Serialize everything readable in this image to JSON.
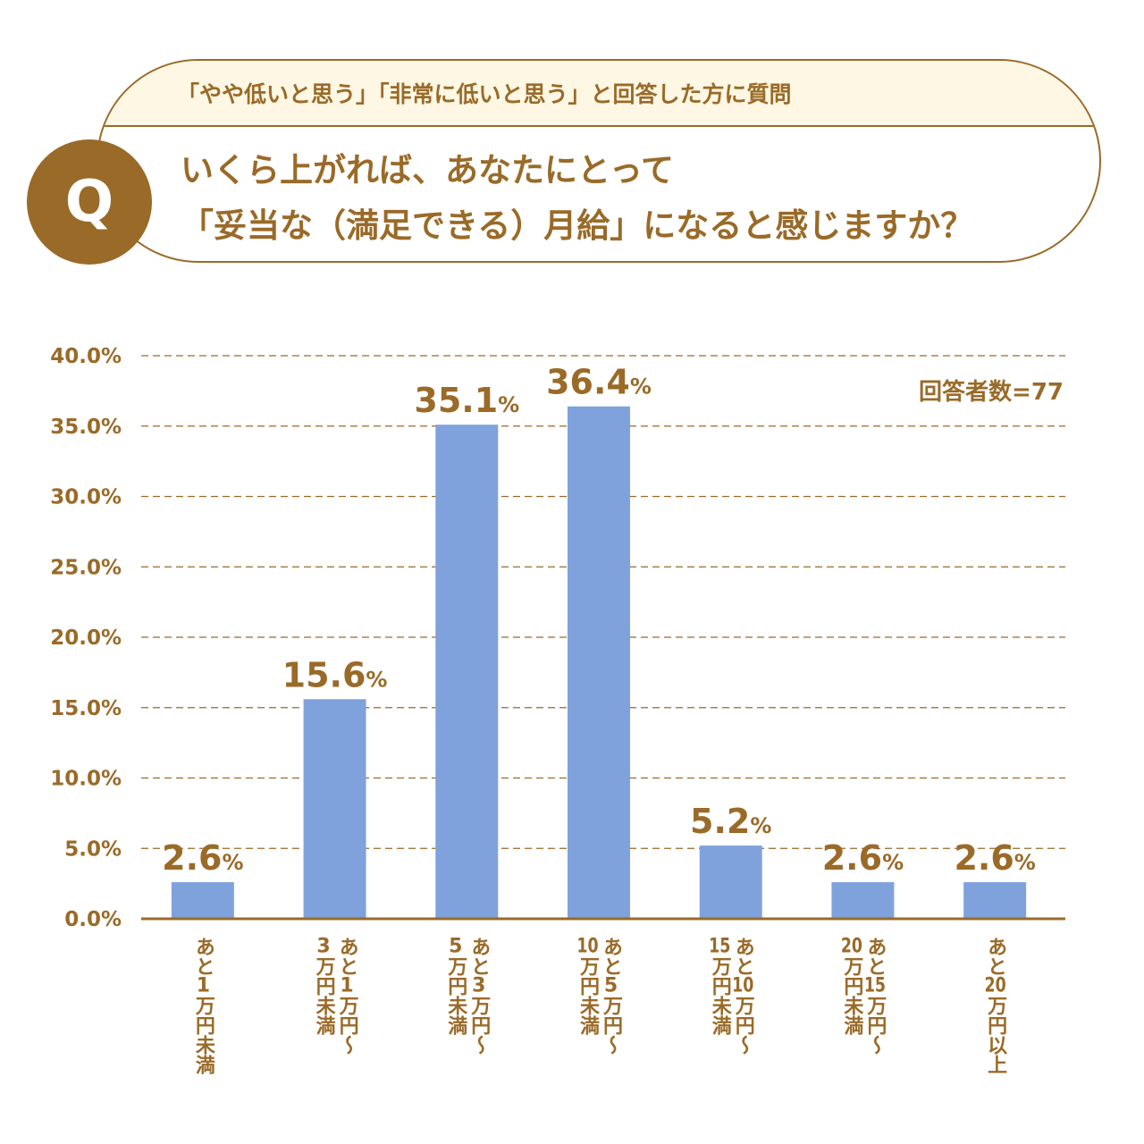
{
  "header": {
    "subtitle": "「やや低いと思う」「非常に低いと思う」と回答した方に質問",
    "q_badge": "Q",
    "question_line1": "いくら上がれば、あなたにとって",
    "question_line2": "「妥当な（満足できる）月給」になると感じますか？"
  },
  "chart_data": {
    "type": "bar",
    "categories": [
      [
        "あと1万円未満"
      ],
      [
        "あと1万円～",
        "3万円未満"
      ],
      [
        "あと3万円～",
        "5万円未満"
      ],
      [
        "あと5万円～",
        "10万円未満"
      ],
      [
        "あと10万円～",
        "15万円未満"
      ],
      [
        "あと15万円～",
        "20万円未満"
      ],
      [
        "あと20万円以上"
      ]
    ],
    "values": [
      2.6,
      15.6,
      35.1,
      36.4,
      5.2,
      2.6,
      2.6
    ],
    "ylim": [
      0,
      40
    ],
    "yticks": [
      "0.0%",
      "5.0%",
      "10.0%",
      "15.0%",
      "20.0%",
      "25.0%",
      "30.0%",
      "35.0%",
      "40.0%"
    ],
    "grid": true,
    "annotation": "回答者数=77",
    "colors": {
      "bar": "#80a2dc",
      "text": "#9a6a28",
      "grid": "#9a6a28"
    }
  }
}
